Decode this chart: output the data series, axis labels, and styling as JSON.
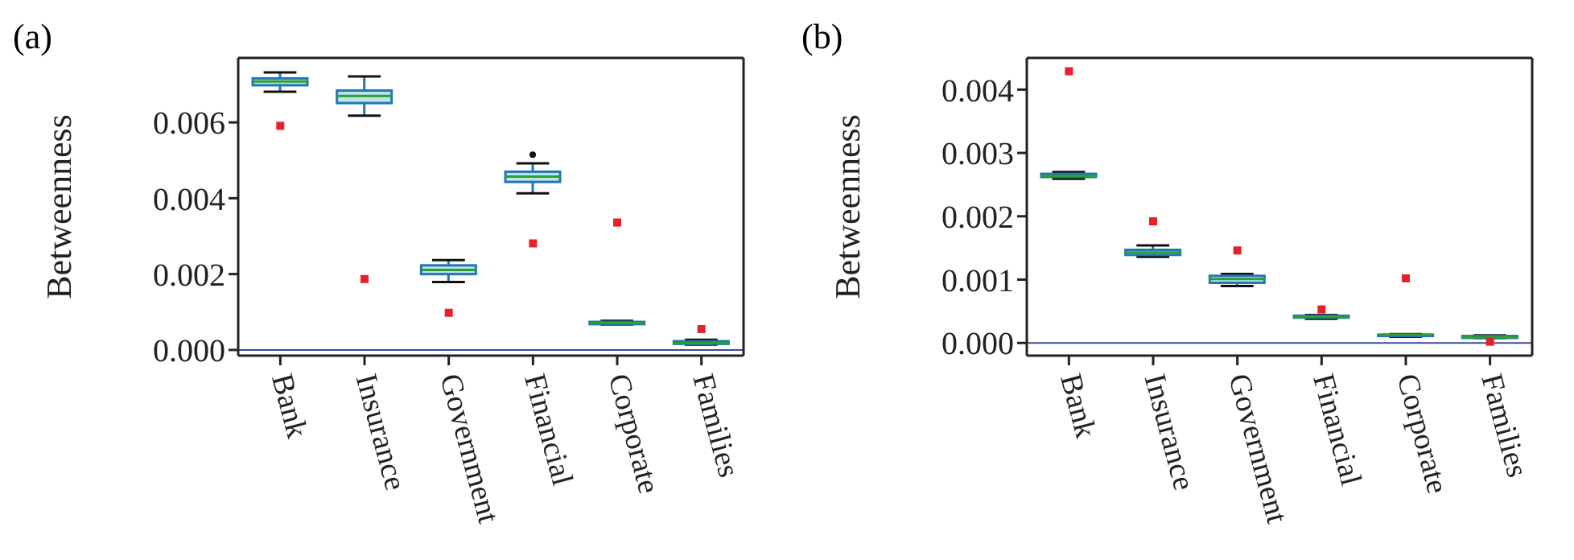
{
  "chart_data": [
    {
      "type": "box",
      "title": "(a)",
      "ylabel": "Betweenness",
      "categories": [
        "Bank",
        "Insurance",
        "Government",
        "Financial",
        "Corporate",
        "Families"
      ],
      "ylim": [
        -0.00015,
        0.0077
      ],
      "yticks": [
        {
          "value": 0,
          "label": "0.000"
        },
        0.002,
        0.004,
        0.006
      ],
      "grid": false,
      "series": [
        {
          "color": "#1f77b4",
          "boxes": [
            {
              "low": 0.00681,
              "q1": 0.00698,
              "median": 0.00708,
              "q3": 0.00716,
              "high": 0.00732
            },
            {
              "low": 0.00618,
              "q1": 0.00651,
              "median": 0.0067,
              "q3": 0.00684,
              "high": 0.00721
            },
            {
              "low": 0.00179,
              "q1": 0.002,
              "median": 0.00211,
              "q3": 0.00223,
              "high": 0.00237
            },
            {
              "low": 0.00413,
              "q1": 0.00443,
              "median": 0.00457,
              "q3": 0.0047,
              "high": 0.00492,
              "outliers": [
                0.00515
              ]
            },
            {
              "low": 0.00067,
              "q1": 0.00068,
              "median": 0.00071,
              "q3": 0.00074,
              "high": 0.00077
            },
            {
              "low": 0.00014,
              "q1": 0.00016,
              "median": 0.00018,
              "q3": 0.00023,
              "high": 0.00027
            }
          ]
        },
        {
          "type": "scatter",
          "color": "#e8202a",
          "marker": "square",
          "x": [
            "Bank",
            "Insurance",
            "Government",
            "Financial",
            "Corporate",
            "Families"
          ],
          "values": [
            0.00591,
            0.00187,
            0.00098,
            0.00281,
            0.00336,
            0.00055
          ]
        }
      ],
      "ref_lines": [
        {
          "axis": "y",
          "value": 0,
          "color": "#3b4a9a"
        }
      ]
    },
    {
      "type": "box",
      "title": "(b)",
      "ylabel": "Betweenness",
      "categories": [
        "Bank",
        "Insurance",
        "Government",
        "Financial",
        "Corporate",
        "Families"
      ],
      "ylim": [
        -0.0002,
        0.0045
      ],
      "yticks": [
        {
          "value": 0,
          "label": "0.000"
        },
        0.001,
        0.002,
        0.003,
        0.004
      ],
      "grid": false,
      "series": [
        {
          "color": "#1f77b4",
          "boxes": [
            {
              "low": 0.00259,
              "q1": 0.00262,
              "median": 0.00264,
              "q3": 0.00267,
              "high": 0.0027
            },
            {
              "low": 0.00136,
              "q1": 0.00139,
              "median": 0.00143,
              "q3": 0.00147,
              "high": 0.00154
            },
            {
              "low": 0.0009,
              "q1": 0.00095,
              "median": 0.00101,
              "q3": 0.00106,
              "high": 0.00109
            },
            {
              "low": 0.00038,
              "q1": 0.0004,
              "median": 0.00041,
              "q3": 0.00043,
              "high": 0.00044
            },
            {
              "low": 0.0001,
              "q1": 0.00011,
              "median": 0.00013,
              "q3": 0.00013,
              "high": 0.00014
            },
            {
              "low": 8e-05,
              "q1": 8e-05,
              "median": 9e-05,
              "q3": 0.00011,
              "high": 0.00012
            }
          ]
        },
        {
          "type": "scatter",
          "color": "#e8202a",
          "marker": "square",
          "x": [
            "Bank",
            "Insurance",
            "Government",
            "Financial",
            "Corporate",
            "Families"
          ],
          "values": [
            0.00429,
            0.00192,
            0.00146,
            0.00053,
            0.00102,
            2e-05
          ]
        }
      ],
      "ref_lines": [
        {
          "axis": "y",
          "value": 0,
          "color": "#3b4a9a"
        }
      ]
    }
  ]
}
